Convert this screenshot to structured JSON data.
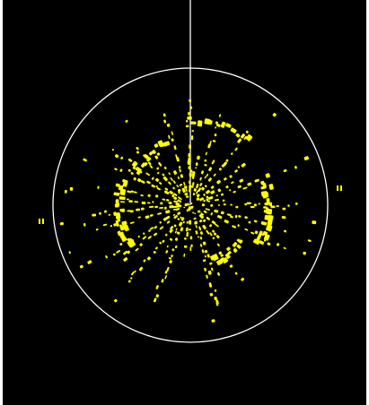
{
  "display": {
    "background_color": "#000000",
    "frame_color": "#ffffff",
    "range_ring_color": "#ffffff",
    "heading_line_color": "#ffffff",
    "echo_color": "#ffff00",
    "echo_shadow_color": "#cccc00"
  },
  "icons": {
    "range_ring": "range-ring-icon",
    "heading_line": "heading-line-icon",
    "echo": "radar-echo-icon"
  }
}
